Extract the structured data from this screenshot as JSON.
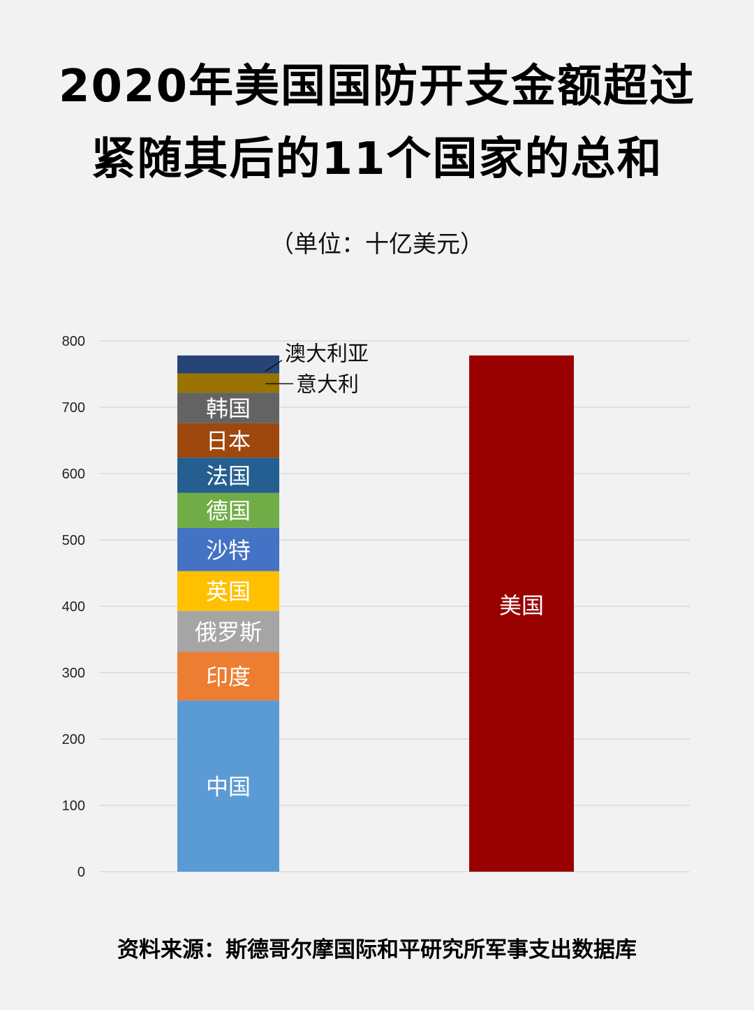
{
  "title_lines": [
    "2020年美国国防开支金额超过",
    "紧随其后的11个国家的总和"
  ],
  "subtitle": "（单位：十亿美元）",
  "source": "资料来源：斯德哥尔摩国际和平研究所军事支出数据库",
  "chart_data": {
    "type": "bar",
    "stacked": true,
    "categories": [
      "紧随其后的11个国家",
      "美国"
    ],
    "ylim": [
      0,
      800
    ],
    "yticks": [
      0,
      100,
      200,
      300,
      400,
      500,
      600,
      700,
      800
    ],
    "grid": true,
    "stack": [
      {
        "name": "中国",
        "value": 258,
        "color": "#5b9bd5",
        "label_color": "#ffffff"
      },
      {
        "name": "印度",
        "value": 73,
        "color": "#ed7d31",
        "label_color": "#ffffff"
      },
      {
        "name": "俄罗斯",
        "value": 62,
        "color": "#a5a5a5",
        "label_color": "#ffffff"
      },
      {
        "name": "英国",
        "value": 60,
        "color": "#ffc000",
        "label_color": "#ffffff"
      },
      {
        "name": "沙特",
        "value": 65,
        "color": "#4472c4",
        "label_color": "#ffffff"
      },
      {
        "name": "德国",
        "value": 53,
        "color": "#70ad47",
        "label_color": "#ffffff"
      },
      {
        "name": "法国",
        "value": 53,
        "color": "#255e91",
        "label_color": "#ffffff"
      },
      {
        "name": "日本",
        "value": 52,
        "color": "#9e480e",
        "label_color": "#ffffff"
      },
      {
        "name": "韩国",
        "value": 46,
        "color": "#636363",
        "label_color": "#ffffff"
      },
      {
        "name": "意大利",
        "value": 29,
        "color": "#997300",
        "label_color": "#111111",
        "callout": true
      },
      {
        "name": "澳大利亚",
        "value": 27,
        "color": "#264478",
        "label_color": "#111111",
        "callout": true
      }
    ],
    "single": {
      "name": "美国",
      "value": 778,
      "color": "#990000",
      "label_color": "#ffffff"
    }
  }
}
